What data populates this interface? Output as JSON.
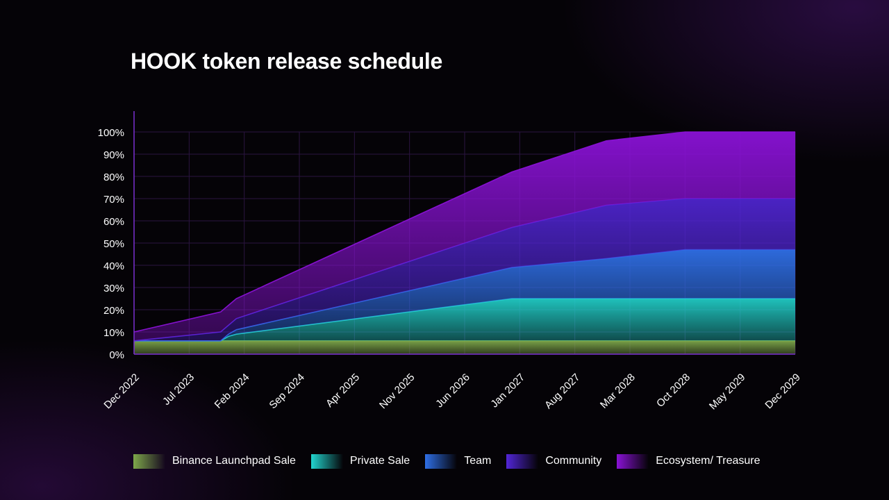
{
  "title": "HOOK token release schedule",
  "colors": {
    "Binance Launchpad Sale": "#7ea84a",
    "Private Sale": "#22d6cf",
    "Team": "#2f6fe6",
    "Community": "#5226d8",
    "Ecosystem/ Treasure": "#8a12d6"
  },
  "chart_data": {
    "type": "area",
    "stacked": true,
    "title": "HOOK token release schedule",
    "xlabel": "",
    "ylabel": "",
    "ylim": [
      0,
      100
    ],
    "yticks": [
      "0%",
      "10%",
      "20%",
      "30%",
      "40%",
      "50%",
      "60%",
      "70%",
      "80%",
      "90%",
      "100%"
    ],
    "x_tick_labels": [
      "Dec 2022",
      "Jul 2023",
      "Feb 2024",
      "Sep 2024",
      "Apr 2025",
      "Nov 2025",
      "Jun 2026",
      "Jan 2027",
      "Aug 2027",
      "Mar 2028",
      "Oct 2028",
      "May 2029",
      "Dec 2029"
    ],
    "x": [
      "2022-12",
      "2023-11",
      "2023-12",
      "2024-01",
      "2026-12",
      "2027-12",
      "2028-10",
      "2029-12"
    ],
    "series": [
      {
        "name": "Binance Launchpad Sale",
        "values": [
          6,
          6,
          6,
          6,
          6,
          6,
          6,
          6
        ]
      },
      {
        "name": "Private Sale",
        "values": [
          0,
          0,
          2,
          3,
          19,
          19,
          19,
          19
        ]
      },
      {
        "name": "Team",
        "values": [
          0,
          0,
          1,
          2,
          14,
          18,
          22,
          22
        ]
      },
      {
        "name": "Community",
        "values": [
          0,
          4,
          4,
          5,
          18,
          24,
          23,
          23
        ]
      },
      {
        "name": "Ecosystem/ Treasure",
        "values": [
          4,
          9,
          9,
          9,
          25,
          29,
          30,
          30
        ]
      }
    ],
    "grid": true,
    "legend_position": "bottom"
  }
}
